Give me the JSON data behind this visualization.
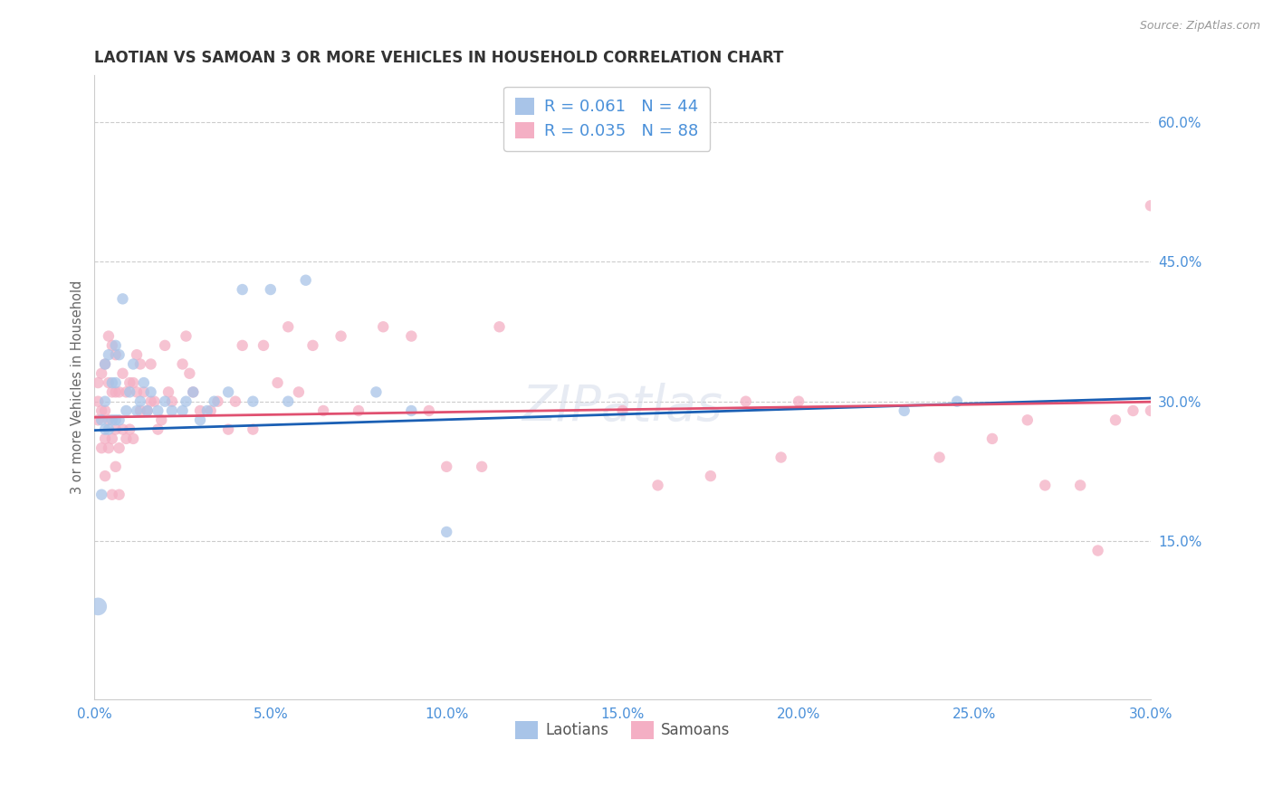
{
  "title": "LAOTIAN VS SAMOAN 3 OR MORE VEHICLES IN HOUSEHOLD CORRELATION CHART",
  "source": "Source: ZipAtlas.com",
  "ylabel": "3 or more Vehicles in Household",
  "xlim": [
    0.0,
    0.3
  ],
  "ylim": [
    -0.02,
    0.65
  ],
  "xticks": [
    0.0,
    0.05,
    0.1,
    0.15,
    0.2,
    0.25,
    0.3
  ],
  "yticks": [
    0.15,
    0.3,
    0.45,
    0.6
  ],
  "ytick_labels": [
    "15.0%",
    "30.0%",
    "45.0%",
    "60.0%"
  ],
  "xtick_labels": [
    "0.0%",
    "5.0%",
    "10.0%",
    "15.0%",
    "20.0%",
    "25.0%",
    "30.0%"
  ],
  "laotian_color": "#a8c4e8",
  "samoan_color": "#f4afc4",
  "laotian_line_color": "#1a5fb4",
  "samoan_line_color": "#e05070",
  "laotian_R": 0.061,
  "laotian_N": 44,
  "samoan_R": 0.035,
  "samoan_N": 88,
  "laotian_intercept": 0.269,
  "laotian_slope": 0.115,
  "samoan_intercept": 0.283,
  "samoan_slope": 0.055,
  "background_color": "#ffffff",
  "grid_color": "#cccccc",
  "legend_label_1": "Laotians",
  "legend_label_2": "Samoans",
  "laotian_x": [
    0.001,
    0.002,
    0.002,
    0.003,
    0.003,
    0.003,
    0.004,
    0.004,
    0.005,
    0.005,
    0.006,
    0.006,
    0.006,
    0.007,
    0.007,
    0.008,
    0.009,
    0.01,
    0.011,
    0.012,
    0.013,
    0.014,
    0.015,
    0.016,
    0.018,
    0.02,
    0.022,
    0.025,
    0.026,
    0.028,
    0.03,
    0.032,
    0.034,
    0.038,
    0.042,
    0.045,
    0.05,
    0.055,
    0.06,
    0.08,
    0.09,
    0.1,
    0.23,
    0.245
  ],
  "laotian_y": [
    0.08,
    0.2,
    0.28,
    0.27,
    0.3,
    0.34,
    0.27,
    0.35,
    0.28,
    0.32,
    0.28,
    0.32,
    0.36,
    0.28,
    0.35,
    0.41,
    0.29,
    0.31,
    0.34,
    0.29,
    0.3,
    0.32,
    0.29,
    0.31,
    0.29,
    0.3,
    0.29,
    0.29,
    0.3,
    0.31,
    0.28,
    0.29,
    0.3,
    0.31,
    0.42,
    0.3,
    0.42,
    0.3,
    0.43,
    0.31,
    0.29,
    0.16,
    0.29,
    0.3
  ],
  "laotian_size": [
    200,
    80,
    80,
    80,
    80,
    80,
    80,
    80,
    80,
    80,
    80,
    80,
    80,
    80,
    80,
    80,
    80,
    80,
    80,
    80,
    80,
    80,
    80,
    80,
    80,
    80,
    80,
    80,
    80,
    80,
    80,
    80,
    80,
    80,
    80,
    80,
    80,
    80,
    80,
    80,
    80,
    80,
    80,
    80
  ],
  "samoan_x": [
    0.001,
    0.001,
    0.001,
    0.002,
    0.002,
    0.002,
    0.003,
    0.003,
    0.003,
    0.003,
    0.004,
    0.004,
    0.004,
    0.004,
    0.005,
    0.005,
    0.005,
    0.005,
    0.006,
    0.006,
    0.006,
    0.006,
    0.007,
    0.007,
    0.007,
    0.008,
    0.008,
    0.009,
    0.009,
    0.01,
    0.01,
    0.011,
    0.011,
    0.012,
    0.012,
    0.013,
    0.013,
    0.014,
    0.015,
    0.016,
    0.016,
    0.017,
    0.018,
    0.019,
    0.02,
    0.021,
    0.022,
    0.025,
    0.026,
    0.027,
    0.028,
    0.03,
    0.033,
    0.035,
    0.038,
    0.04,
    0.042,
    0.045,
    0.048,
    0.052,
    0.055,
    0.058,
    0.062,
    0.065,
    0.07,
    0.075,
    0.082,
    0.09,
    0.095,
    0.1,
    0.11,
    0.115,
    0.15,
    0.16,
    0.175,
    0.185,
    0.195,
    0.2,
    0.24,
    0.255,
    0.265,
    0.27,
    0.28,
    0.285,
    0.29,
    0.295,
    0.3,
    0.3
  ],
  "samoan_y": [
    0.28,
    0.3,
    0.32,
    0.25,
    0.29,
    0.33,
    0.22,
    0.26,
    0.29,
    0.34,
    0.25,
    0.28,
    0.32,
    0.37,
    0.2,
    0.26,
    0.31,
    0.36,
    0.23,
    0.27,
    0.31,
    0.35,
    0.2,
    0.25,
    0.31,
    0.27,
    0.33,
    0.26,
    0.31,
    0.27,
    0.32,
    0.26,
    0.32,
    0.31,
    0.35,
    0.29,
    0.34,
    0.31,
    0.29,
    0.3,
    0.34,
    0.3,
    0.27,
    0.28,
    0.36,
    0.31,
    0.3,
    0.34,
    0.37,
    0.33,
    0.31,
    0.29,
    0.29,
    0.3,
    0.27,
    0.3,
    0.36,
    0.27,
    0.36,
    0.32,
    0.38,
    0.31,
    0.36,
    0.29,
    0.37,
    0.29,
    0.38,
    0.37,
    0.29,
    0.23,
    0.23,
    0.38,
    0.29,
    0.21,
    0.22,
    0.3,
    0.24,
    0.3,
    0.24,
    0.26,
    0.28,
    0.21,
    0.21,
    0.14,
    0.28,
    0.29,
    0.29,
    0.51
  ],
  "samoan_size": [
    80,
    80,
    80,
    80,
    80,
    80,
    80,
    80,
    80,
    80,
    80,
    80,
    80,
    80,
    80,
    80,
    80,
    80,
    80,
    80,
    80,
    80,
    80,
    80,
    80,
    80,
    80,
    80,
    80,
    80,
    80,
    80,
    80,
    80,
    80,
    80,
    80,
    80,
    80,
    80,
    80,
    80,
    80,
    80,
    80,
    80,
    80,
    80,
    80,
    80,
    80,
    80,
    80,
    80,
    80,
    80,
    80,
    80,
    80,
    80,
    80,
    80,
    80,
    80,
    80,
    80,
    80,
    80,
    80,
    80,
    80,
    80,
    80,
    80,
    80,
    80,
    80,
    80,
    80,
    80,
    80,
    80,
    80,
    80,
    80,
    80,
    80,
    80
  ]
}
